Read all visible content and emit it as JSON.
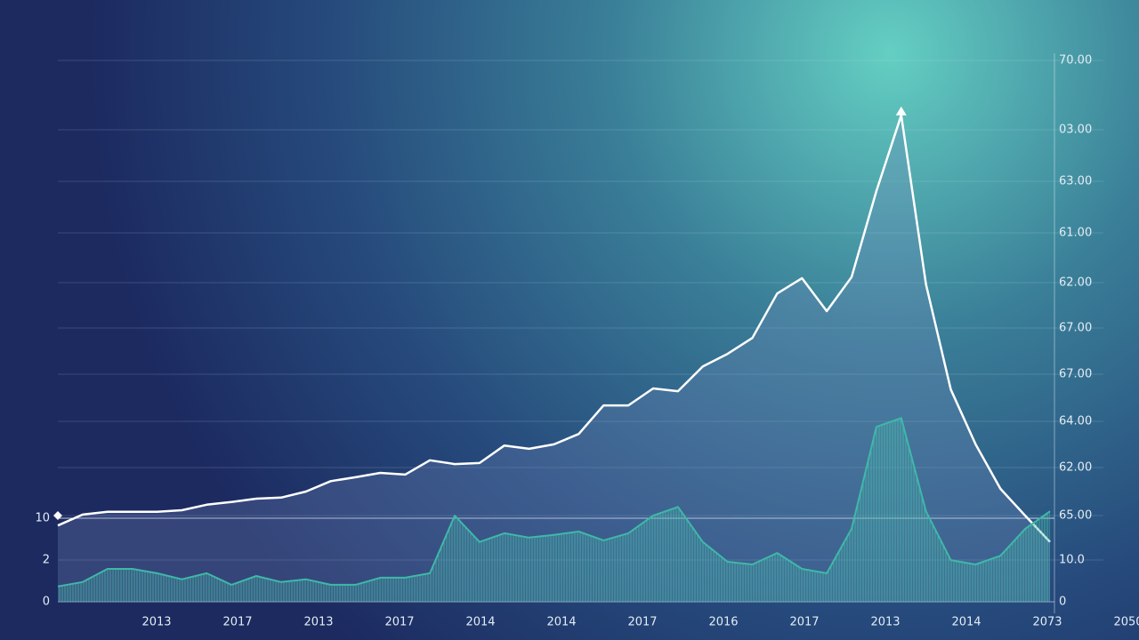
{
  "chart_data": {
    "type": "line",
    "x_labels": [
      "2013",
      "2017",
      "2013",
      "2017",
      "2014",
      "2014",
      "2017",
      "2016",
      "2017",
      "2013",
      "2014",
      "2073",
      "2050"
    ],
    "right_axis_labels": [
      "70.00",
      "03.00",
      "63.00",
      "61.00",
      "62.00",
      "67.00",
      "67.00",
      "64.00",
      "62.00",
      "65.00",
      "10.0",
      "0"
    ],
    "left_axis_labels": [
      "10",
      "2",
      "0"
    ],
    "ylim": [
      0,
      100
    ],
    "series": [
      {
        "color": "#ffffff",
        "values": [
          13.9,
          15.9,
          16.4,
          16.4,
          16.4,
          16.7,
          17.7,
          18.2,
          18.8,
          19.0,
          20.1,
          22.0,
          22.7,
          23.5,
          23.2,
          25.8,
          25.1,
          25.3,
          28.5,
          27.9,
          28.7,
          30.6,
          35.8,
          35.8,
          38.9,
          38.4,
          42.9,
          45.2,
          48.1,
          56.2,
          59.0,
          53.0,
          59.2,
          74.9,
          88.7,
          57.9,
          38.7,
          28.7,
          20.6,
          15.7,
          10.9
        ]
      },
      {
        "color": "#3fb8a8",
        "values": [
          2.8,
          3.6,
          6.0,
          6.0,
          5.2,
          4.1,
          5.2,
          3.1,
          4.7,
          3.6,
          4.1,
          3.1,
          3.1,
          4.4,
          4.4,
          5.2,
          15.7,
          10.9,
          12.5,
          11.7,
          12.2,
          12.8,
          11.2,
          12.5,
          15.7,
          17.3,
          10.9,
          7.3,
          6.8,
          8.9,
          6.0,
          5.2,
          13.3,
          31.9,
          33.5,
          16.5,
          7.6,
          6.8,
          8.4,
          13.3,
          16.5
        ]
      }
    ]
  }
}
